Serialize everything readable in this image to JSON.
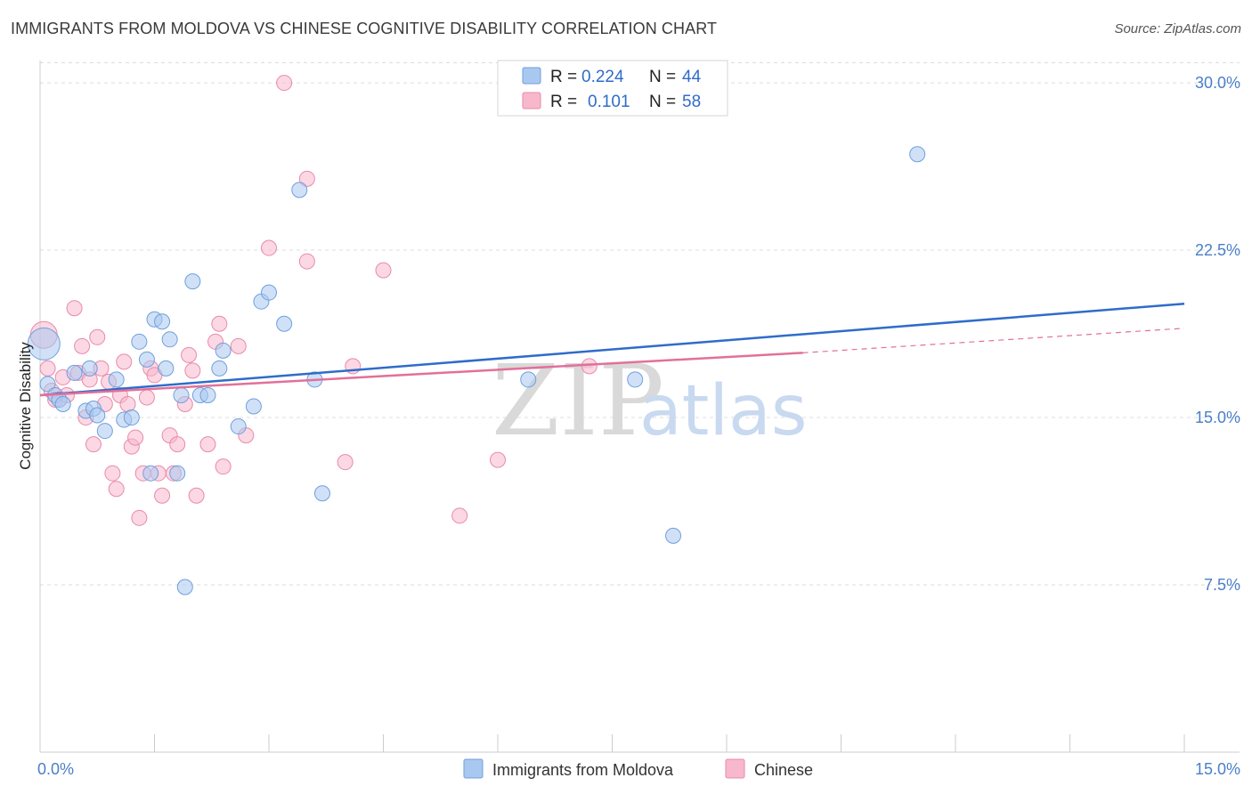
{
  "title": "IMMIGRANTS FROM MOLDOVA VS CHINESE COGNITIVE DISABILITY CORRELATION CHART",
  "source": "Source: ZipAtlas.com",
  "watermark": {
    "zip": "ZIP",
    "atlas": "atlas"
  },
  "colors": {
    "blue_fill": "#a9c8f0",
    "blue_stroke": "#6f9fdc",
    "blue_line": "#2f6cc9",
    "pink_fill": "#f7b8cc",
    "pink_stroke": "#e98aab",
    "pink_line": "#e2709a",
    "grid": "#dddddd",
    "tick_text": "#4a7fc8"
  },
  "legend": {
    "rows": [
      {
        "r_label": "R =",
        "r_value": "0.224",
        "n_label": "N =",
        "n_value": "44"
      },
      {
        "r_label": "R =",
        "r_value": "0.101",
        "n_label": "N =",
        "n_value": "58"
      }
    ]
  },
  "chart_data": {
    "type": "scatter",
    "title": "IMMIGRANTS FROM MOLDOVA VS CHINESE COGNITIVE DISABILITY CORRELATION CHART",
    "xlabel": "",
    "ylabel": "Cognitive Disability",
    "xlim": [
      0,
      15
    ],
    "ylim": [
      0,
      31
    ],
    "x_tick_labels": [
      "0.0%",
      "15.0%"
    ],
    "y_ticks": [
      7.5,
      15.0,
      22.5,
      30.0
    ],
    "y_tick_labels": [
      "7.5%",
      "15.0%",
      "22.5%",
      "30.0%"
    ],
    "grid": "horizontal dashed",
    "legend_position": "top-center",
    "series": [
      {
        "name": "Immigrants from Moldova",
        "trend": {
          "x": [
            0,
            15
          ],
          "y": [
            16.0,
            20.1
          ]
        },
        "points": [
          {
            "x": 0.05,
            "y": 18.3,
            "big": true
          },
          {
            "x": 0.1,
            "y": 16.5
          },
          {
            "x": 0.2,
            "y": 16.0
          },
          {
            "x": 0.25,
            "y": 15.8
          },
          {
            "x": 0.3,
            "y": 15.6
          },
          {
            "x": 0.45,
            "y": 17.0
          },
          {
            "x": 0.6,
            "y": 15.3
          },
          {
            "x": 0.65,
            "y": 17.2
          },
          {
            "x": 0.7,
            "y": 15.4
          },
          {
            "x": 0.75,
            "y": 15.1
          },
          {
            "x": 0.85,
            "y": 14.4
          },
          {
            "x": 1.0,
            "y": 16.7
          },
          {
            "x": 1.1,
            "y": 14.9
          },
          {
            "x": 1.2,
            "y": 15.0
          },
          {
            "x": 1.3,
            "y": 18.4
          },
          {
            "x": 1.4,
            "y": 17.6
          },
          {
            "x": 1.45,
            "y": 12.5
          },
          {
            "x": 1.5,
            "y": 19.4
          },
          {
            "x": 1.6,
            "y": 19.3
          },
          {
            "x": 1.65,
            "y": 17.2
          },
          {
            "x": 1.7,
            "y": 18.5
          },
          {
            "x": 1.8,
            "y": 12.5
          },
          {
            "x": 1.85,
            "y": 16.0
          },
          {
            "x": 1.9,
            "y": 7.4
          },
          {
            "x": 2.0,
            "y": 21.1
          },
          {
            "x": 2.1,
            "y": 16.0
          },
          {
            "x": 2.2,
            "y": 16.0
          },
          {
            "x": 2.35,
            "y": 17.2
          },
          {
            "x": 2.4,
            "y": 18.0
          },
          {
            "x": 2.6,
            "y": 14.6
          },
          {
            "x": 2.8,
            "y": 15.5
          },
          {
            "x": 2.9,
            "y": 20.2
          },
          {
            "x": 3.0,
            "y": 20.6
          },
          {
            "x": 3.2,
            "y": 19.2
          },
          {
            "x": 3.4,
            "y": 25.2
          },
          {
            "x": 3.6,
            "y": 16.7
          },
          {
            "x": 3.7,
            "y": 11.6
          },
          {
            "x": 6.4,
            "y": 16.7
          },
          {
            "x": 7.8,
            "y": 16.7
          },
          {
            "x": 8.3,
            "y": 9.7
          },
          {
            "x": 11.5,
            "y": 26.8
          }
        ]
      },
      {
        "name": "Chinese",
        "trend": {
          "x": [
            0,
            10.0
          ],
          "y": [
            16.0,
            17.9
          ]
        },
        "trend_dashed": {
          "x": [
            10.0,
            15
          ],
          "y": [
            17.9,
            19.0
          ]
        },
        "points": [
          {
            "x": 0.05,
            "y": 18.7,
            "big": true
          },
          {
            "x": 0.1,
            "y": 17.2
          },
          {
            "x": 0.15,
            "y": 16.2
          },
          {
            "x": 0.2,
            "y": 15.8
          },
          {
            "x": 0.3,
            "y": 16.8
          },
          {
            "x": 0.35,
            "y": 16.0
          },
          {
            "x": 0.45,
            "y": 19.9
          },
          {
            "x": 0.5,
            "y": 17.0
          },
          {
            "x": 0.55,
            "y": 18.2
          },
          {
            "x": 0.6,
            "y": 15.0
          },
          {
            "x": 0.65,
            "y": 16.7
          },
          {
            "x": 0.7,
            "y": 13.8
          },
          {
            "x": 0.75,
            "y": 18.6
          },
          {
            "x": 0.8,
            "y": 17.2
          },
          {
            "x": 0.85,
            "y": 15.6
          },
          {
            "x": 0.9,
            "y": 16.6
          },
          {
            "x": 0.95,
            "y": 12.5
          },
          {
            "x": 1.0,
            "y": 11.8
          },
          {
            "x": 1.05,
            "y": 16.0
          },
          {
            "x": 1.1,
            "y": 17.5
          },
          {
            "x": 1.15,
            "y": 15.6
          },
          {
            "x": 1.2,
            "y": 13.7
          },
          {
            "x": 1.25,
            "y": 14.1
          },
          {
            "x": 1.3,
            "y": 10.5
          },
          {
            "x": 1.35,
            "y": 12.5
          },
          {
            "x": 1.4,
            "y": 15.9
          },
          {
            "x": 1.45,
            "y": 17.2
          },
          {
            "x": 1.5,
            "y": 16.9
          },
          {
            "x": 1.55,
            "y": 12.5
          },
          {
            "x": 1.6,
            "y": 11.5
          },
          {
            "x": 1.7,
            "y": 14.2
          },
          {
            "x": 1.75,
            "y": 12.5
          },
          {
            "x": 1.8,
            "y": 13.8
          },
          {
            "x": 1.9,
            "y": 15.6
          },
          {
            "x": 1.95,
            "y": 17.8
          },
          {
            "x": 2.0,
            "y": 17.1
          },
          {
            "x": 2.05,
            "y": 11.5
          },
          {
            "x": 2.2,
            "y": 13.8
          },
          {
            "x": 2.3,
            "y": 18.4
          },
          {
            "x": 2.35,
            "y": 19.2
          },
          {
            "x": 2.4,
            "y": 12.8
          },
          {
            "x": 2.6,
            "y": 18.2
          },
          {
            "x": 2.7,
            "y": 14.2
          },
          {
            "x": 3.0,
            "y": 22.6
          },
          {
            "x": 3.2,
            "y": 30.0
          },
          {
            "x": 3.5,
            "y": 22.0
          },
          {
            "x": 3.5,
            "y": 25.7
          },
          {
            "x": 4.0,
            "y": 13.0
          },
          {
            "x": 4.1,
            "y": 17.3
          },
          {
            "x": 4.5,
            "y": 21.6
          },
          {
            "x": 5.5,
            "y": 10.6
          },
          {
            "x": 6.0,
            "y": 13.1
          },
          {
            "x": 7.2,
            "y": 17.3
          }
        ]
      }
    ]
  }
}
